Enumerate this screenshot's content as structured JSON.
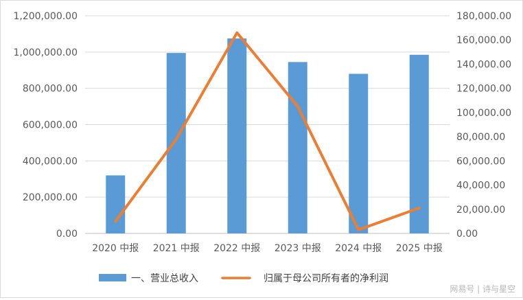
{
  "chart_data": {
    "type": "bar",
    "categories": [
      "2020 中报",
      "2021 中报",
      "2022 中报",
      "2023 中报",
      "2024 中报",
      "2025 中报"
    ],
    "series": [
      {
        "name": "一、营业总收入",
        "type": "bar",
        "axis": "left",
        "color": "#5B9BD5",
        "values": [
          320000,
          995000,
          1075000,
          945000,
          880000,
          985000
        ]
      },
      {
        "name": "归属于母公司所有者的净利润",
        "type": "line",
        "axis": "right",
        "color": "#ED7D31",
        "values": [
          10000,
          78000,
          166000,
          105000,
          3000,
          21000
        ]
      }
    ],
    "y_left": {
      "min": 0,
      "max": 1200000,
      "ticks": [
        "0.00",
        "200,000.00",
        "400,000.00",
        "600,000.00",
        "800,000.00",
        "1,000,000.00",
        "1,200,000.00"
      ]
    },
    "y_right": {
      "min": 0,
      "max": 180000,
      "ticks": [
        "0.00",
        "20,000.00",
        "40,000.00",
        "60,000.00",
        "80,000.00",
        "100,000.00",
        "120,000.00",
        "140,000.00",
        "160,000.00",
        "180,000.00"
      ]
    },
    "grid": true,
    "legend": "bottom"
  },
  "legend": {
    "bar_label": "一、营业总收入",
    "line_label": "归属于母公司所有者的净利润"
  },
  "watermark": "网易号 | 诗与星空"
}
